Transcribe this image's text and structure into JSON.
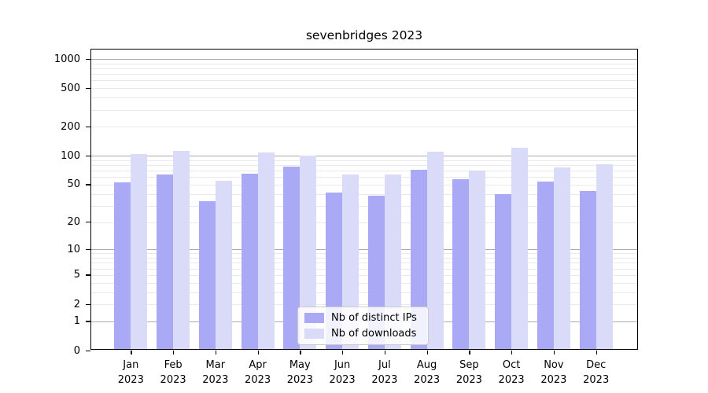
{
  "chart_data": {
    "type": "bar",
    "title": "sevenbridges 2023",
    "categories": [
      "Jan",
      "Feb",
      "Mar",
      "Apr",
      "May",
      "Jun",
      "Jul",
      "Aug",
      "Sep",
      "Oct",
      "Nov",
      "Dec"
    ],
    "category_year": "2023",
    "series": [
      {
        "name": "Nb of distinct IPs",
        "color": "#a9a9f5",
        "values": [
          51,
          61,
          32,
          63,
          74,
          40,
          37,
          69,
          55,
          38,
          52,
          41
        ]
      },
      {
        "name": "Nb of downloads",
        "color": "#dadaf9",
        "values": [
          100,
          108,
          53,
          104,
          97,
          62,
          61,
          106,
          68,
          117,
          73,
          79
        ]
      }
    ],
    "xlabel": "",
    "ylabel": "",
    "yscale": "log10(1+y)",
    "ylim": [
      0,
      1250
    ],
    "yticks": [
      0,
      1,
      2,
      5,
      10,
      20,
      50,
      100,
      200,
      500,
      1000
    ],
    "grid": {
      "major_lines": [
        1,
        10,
        100,
        1000
      ],
      "major_color": "#ababab",
      "minor_color": "#e9e9e9",
      "minor_decades": [
        1,
        10,
        100
      ]
    },
    "legend": {
      "position": "lower center"
    }
  }
}
